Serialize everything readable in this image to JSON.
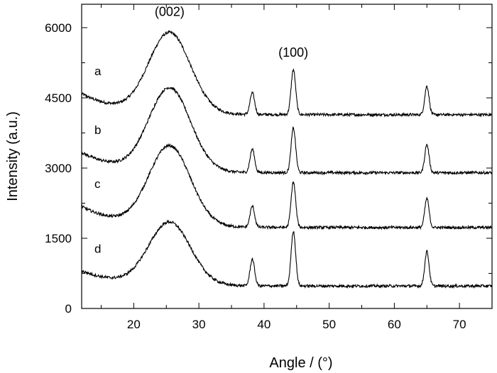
{
  "chart_data": {
    "type": "line",
    "title": "",
    "xlabel": "Angle / (°)",
    "ylabel": "Intensity (a.u.)",
    "xlim": [
      12,
      75
    ],
    "ylim": [
      0,
      6500
    ],
    "x_ticks": [
      20,
      30,
      40,
      50,
      60,
      70
    ],
    "y_ticks": [
      0,
      1500,
      3000,
      4500,
      6000
    ],
    "grid": false,
    "legend": "none",
    "annotations": [
      {
        "text": "(002)",
        "x": 25.5,
        "y": 6250
      },
      {
        "text": "(100)",
        "x": 44.5,
        "y": 5380
      }
    ],
    "series": [
      {
        "name": "a",
        "baseline": 4140,
        "start_value": 4640,
        "peaks": [
          {
            "x": 25.5,
            "value": 5900
          },
          {
            "x": 38.2,
            "value": 4600
          },
          {
            "x": 44.5,
            "value": 5100
          },
          {
            "x": 65.0,
            "value": 4750
          }
        ]
      },
      {
        "name": "b",
        "baseline": 2900,
        "start_value": 3380,
        "peaks": [
          {
            "x": 25.5,
            "value": 4720
          },
          {
            "x": 38.2,
            "value": 3400
          },
          {
            "x": 44.5,
            "value": 3850
          },
          {
            "x": 65.0,
            "value": 3500
          }
        ]
      },
      {
        "name": "c",
        "baseline": 1730,
        "start_value": 2230,
        "peaks": [
          {
            "x": 25.5,
            "value": 3480
          },
          {
            "x": 38.2,
            "value": 2180
          },
          {
            "x": 44.5,
            "value": 2700
          },
          {
            "x": 65.0,
            "value": 2350
          }
        ]
      },
      {
        "name": "d",
        "baseline": 480,
        "start_value": 840,
        "peaks": [
          {
            "x": 25.5,
            "value": 1850
          },
          {
            "x": 38.2,
            "value": 1050
          },
          {
            "x": 44.5,
            "value": 1650
          },
          {
            "x": 65.0,
            "value": 1220
          }
        ]
      }
    ]
  }
}
